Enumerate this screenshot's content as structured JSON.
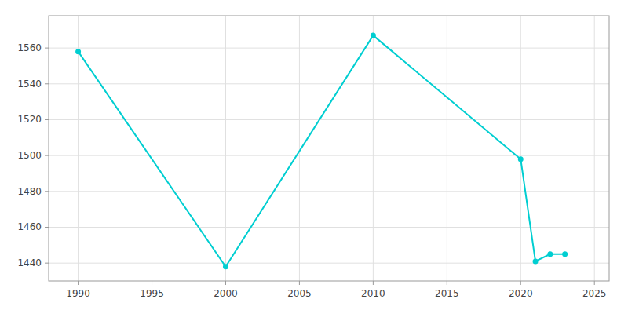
{
  "chart_data": {
    "type": "line",
    "x": [
      1990,
      2000,
      2010,
      2020,
      2021,
      2022,
      2023
    ],
    "values": [
      1558,
      1438,
      1567,
      1498,
      1441,
      1445,
      1445
    ],
    "color": "#00CED1",
    "marker": "circle",
    "xlim": [
      1988,
      2026
    ],
    "ylim": [
      1430,
      1578
    ],
    "xticks": [
      1990,
      1995,
      2000,
      2005,
      2010,
      2015,
      2020,
      2025
    ],
    "yticks": [
      1440,
      1460,
      1480,
      1500,
      1520,
      1540,
      1560
    ],
    "grid": true
  }
}
